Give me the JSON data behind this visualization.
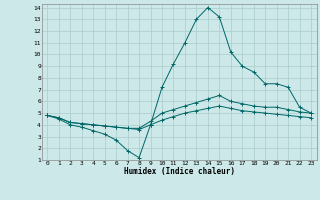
{
  "xlabel": "Humidex (Indice chaleur)",
  "background_color": "#cce8e8",
  "grid_color": "#aacccc",
  "line_color": "#006666",
  "xlim": [
    0,
    23
  ],
  "ylim": [
    1,
    14
  ],
  "xticks": [
    0,
    1,
    2,
    3,
    4,
    5,
    6,
    7,
    8,
    9,
    10,
    11,
    12,
    13,
    14,
    15,
    16,
    17,
    18,
    19,
    20,
    21,
    22,
    23
  ],
  "yticks": [
    1,
    2,
    3,
    4,
    5,
    6,
    7,
    8,
    9,
    10,
    11,
    12,
    13,
    14
  ],
  "series": [
    {
      "x": [
        0,
        1,
        2,
        3,
        4,
        5,
        6,
        7,
        8,
        9,
        10,
        11,
        12,
        13,
        14,
        15,
        16,
        17,
        18,
        19,
        20,
        21,
        22,
        23
      ],
      "y": [
        4.8,
        4.5,
        4.0,
        3.8,
        3.5,
        3.2,
        2.7,
        1.8,
        1.2,
        4.0,
        7.2,
        9.2,
        11.0,
        13.0,
        14.0,
        13.2,
        10.2,
        9.0,
        8.5,
        7.5,
        7.5,
        7.2,
        5.5,
        5.0
      ]
    },
    {
      "x": [
        0,
        1,
        2,
        3,
        4,
        5,
        6,
        7,
        8,
        9,
        10,
        11,
        12,
        13,
        14,
        15,
        16,
        17,
        18,
        19,
        20,
        21,
        22,
        23
      ],
      "y": [
        4.8,
        4.6,
        4.2,
        4.1,
        4.0,
        3.9,
        3.8,
        3.7,
        3.7,
        4.3,
        5.0,
        5.3,
        5.6,
        5.9,
        6.2,
        6.5,
        6.0,
        5.8,
        5.6,
        5.5,
        5.5,
        5.3,
        5.1,
        5.0
      ]
    },
    {
      "x": [
        0,
        1,
        2,
        3,
        4,
        5,
        6,
        7,
        8,
        9,
        10,
        11,
        12,
        13,
        14,
        15,
        16,
        17,
        18,
        19,
        20,
        21,
        22,
        23
      ],
      "y": [
        4.8,
        4.6,
        4.2,
        4.1,
        4.0,
        3.9,
        3.8,
        3.7,
        3.6,
        4.0,
        4.4,
        4.7,
        5.0,
        5.2,
        5.4,
        5.6,
        5.4,
        5.2,
        5.1,
        5.0,
        4.9,
        4.8,
        4.7,
        4.6
      ]
    }
  ]
}
